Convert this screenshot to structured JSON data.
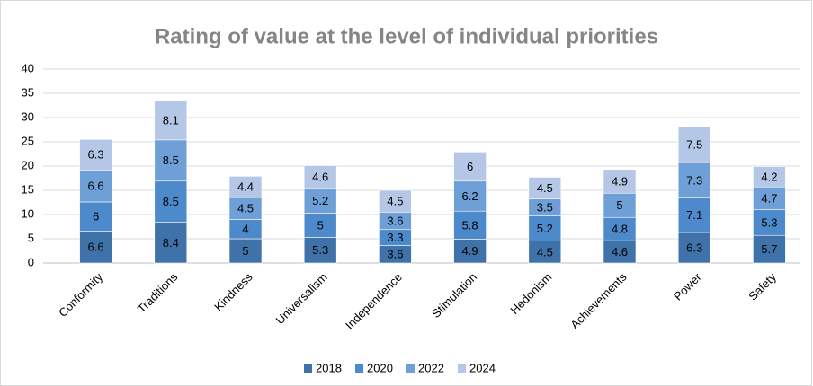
{
  "chart_data": {
    "type": "stacked_bar",
    "title": "Rating of value at the level of individual priorities",
    "categories": [
      "Conformity",
      "Traditions",
      "Kindness",
      "Universalism",
      "Independence",
      "Stimulation",
      "Hedonism",
      "Achievements",
      "Power",
      "Safety"
    ],
    "series": [
      {
        "name": "2018",
        "color": "#3f72a8",
        "values": [
          6.6,
          8.4,
          5,
          5.3,
          3.6,
          4.9,
          4.5,
          4.6,
          6.3,
          5.7
        ]
      },
      {
        "name": "2020",
        "color": "#4d8acb",
        "values": [
          6,
          8.5,
          4,
          5,
          3.3,
          5.8,
          5.2,
          4.8,
          7.1,
          5.3
        ]
      },
      {
        "name": "2022",
        "color": "#6e9fd6",
        "values": [
          6.6,
          8.5,
          4.5,
          5.2,
          3.6,
          6.2,
          3.5,
          5,
          7.3,
          4.7
        ]
      },
      {
        "name": "2024",
        "color": "#b4c7e6",
        "values": [
          6.3,
          8.1,
          4.4,
          4.6,
          4.5,
          6,
          4.5,
          4.9,
          7.5,
          4.2
        ]
      }
    ],
    "ylim": [
      0,
      40
    ],
    "yticks": [
      0,
      5,
      10,
      15,
      20,
      25,
      30,
      35,
      40
    ],
    "grid": true,
    "legend": "bottom"
  }
}
